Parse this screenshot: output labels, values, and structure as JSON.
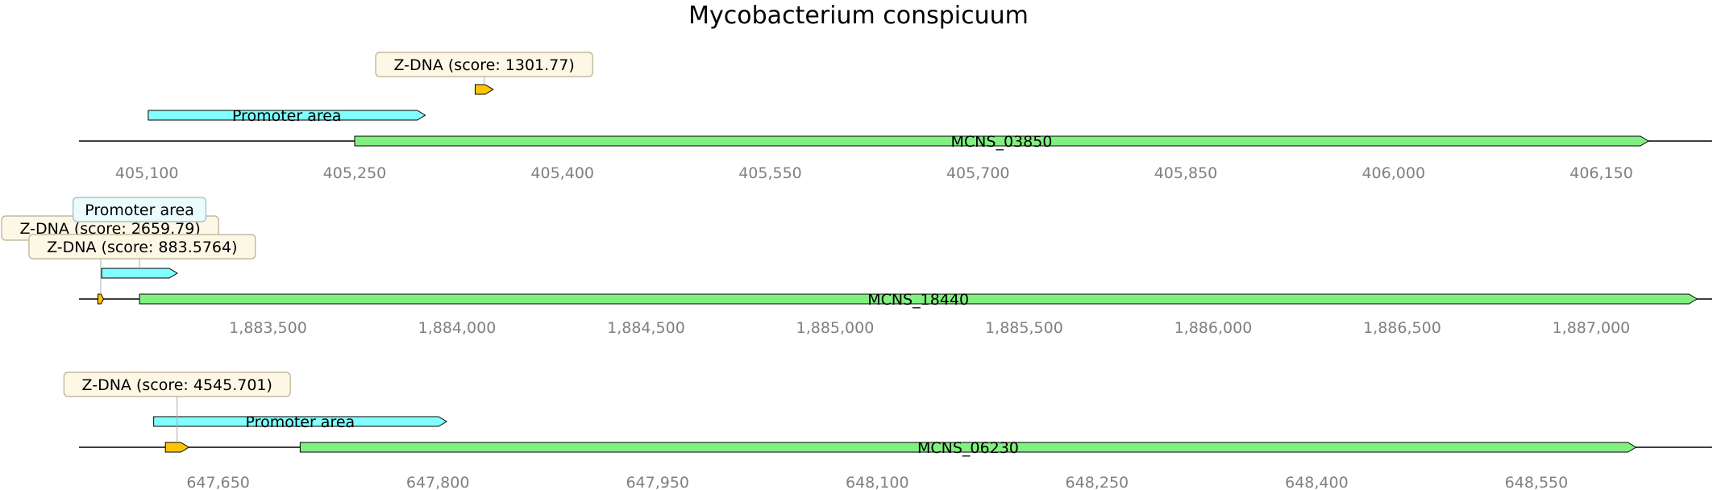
{
  "title": "Mycobacterium conspicuum",
  "colors": {
    "gene": "#80f080",
    "promoter": "#80ffff",
    "zdna": "#ffc400",
    "axis_tick_text": "#808080",
    "callout_zdna_bg": "#fdf8e6",
    "callout_promoter_bg": "#eafcfc"
  },
  "tracks": [
    {
      "range": [
        405051,
        406230
      ],
      "ticks": [
        405100,
        405250,
        405400,
        405550,
        405700,
        405850,
        406000,
        406150
      ],
      "tick_labels": [
        "405,100",
        "405,250",
        "405,400",
        "405,550",
        "405,700",
        "405,850",
        "406,000",
        "406,150"
      ],
      "features": [
        {
          "kind": "gene",
          "label": "MCNS_03850",
          "start": 405250,
          "end": 406184,
          "row": 0,
          "show_label": true
        },
        {
          "kind": "promoter",
          "label": "Promoter area",
          "start": 405101,
          "end": 405301,
          "row": 1,
          "show_label": true
        },
        {
          "kind": "zdna",
          "label": "Z-DNA (score: 1301.77)",
          "start": 405337,
          "end": 405350,
          "row": 2,
          "callout": true,
          "callout_row": 0
        }
      ]
    },
    {
      "range": [
        1883000,
        1887320
      ],
      "ticks": [
        1883500,
        1884000,
        1884500,
        1885000,
        1885500,
        1886000,
        1886500,
        1887000
      ],
      "tick_labels": [
        "1,883,500",
        "1,884,000",
        "1,884,500",
        "1,885,000",
        "1,885,500",
        "1,886,000",
        "1,886,500",
        "1,887,000"
      ],
      "features": [
        {
          "kind": "gene",
          "label": "MCNS_18440",
          "start": 1883160,
          "end": 1887280,
          "row": 0,
          "show_label": true
        },
        {
          "kind": "zdna",
          "label": "Z-DNA (score: 2659.79)",
          "start": 1883050,
          "end": 1883065,
          "row": 0,
          "callout": true,
          "callout_row": 1
        },
        {
          "kind": "promoter",
          "label": "Promoter area",
          "start": 1883060,
          "end": 1883260,
          "row": 1,
          "callout": true,
          "callout_row": 0
        },
        {
          "kind": "zdna",
          "label": "Z-DNA (score: 883.5764)",
          "start": 1883162,
          "end": 1883172,
          "row": 2,
          "callout": true,
          "callout_row": 2
        }
      ]
    },
    {
      "range": [
        647555,
        648670
      ],
      "ticks": [
        647650,
        647800,
        647950,
        648100,
        648250,
        648400,
        648550
      ],
      "tick_labels": [
        "647,650",
        "647,800",
        "647,950",
        "648,100",
        "648,250",
        "648,400",
        "648,550"
      ],
      "features": [
        {
          "kind": "gene",
          "label": "MCNS_06230",
          "start": 647706,
          "end": 648618,
          "row": 0,
          "show_label": true
        },
        {
          "kind": "promoter",
          "label": "Promoter area",
          "start": 647606,
          "end": 647806,
          "row": 1,
          "show_label": true
        },
        {
          "kind": "zdna",
          "label": "Z-DNA (score: 4545.701)",
          "start": 647614,
          "end": 647630,
          "row": 0,
          "callout": true,
          "callout_row": 0
        }
      ]
    }
  ]
}
